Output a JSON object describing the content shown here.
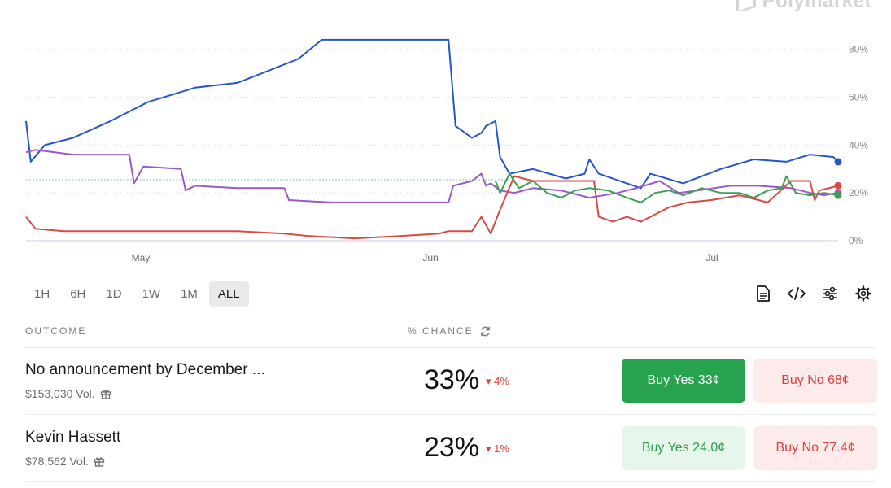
{
  "brand": {
    "name": "Polymarket"
  },
  "chart_data": {
    "type": "line",
    "yaxis": {
      "ticks": [
        "80%",
        "60%",
        "40%",
        "20%",
        "0%"
      ],
      "ylim": [
        0,
        85
      ]
    },
    "xaxis": {
      "ticks": [
        "May",
        "Jun",
        "Jul"
      ]
    },
    "grid": true,
    "series": [
      {
        "color": "#2456c8",
        "points": [
          [
            0,
            50
          ],
          [
            1,
            33
          ],
          [
            4,
            40
          ],
          [
            10,
            43
          ],
          [
            18,
            50
          ],
          [
            26,
            58
          ],
          [
            36,
            64
          ],
          [
            45,
            66
          ],
          [
            58,
            76
          ],
          [
            63,
            84
          ],
          [
            71,
            84
          ],
          [
            90,
            84
          ],
          [
            91.5,
            48
          ],
          [
            95,
            43
          ],
          [
            97,
            45
          ],
          [
            98,
            48
          ],
          [
            100,
            50
          ],
          [
            101,
            35
          ],
          [
            103,
            28
          ],
          [
            108,
            30
          ],
          [
            115,
            26
          ],
          [
            119,
            28
          ],
          [
            120,
            34
          ],
          [
            122,
            28
          ],
          [
            128,
            24
          ],
          [
            131,
            22
          ],
          [
            133,
            28
          ],
          [
            140,
            24
          ],
          [
            148,
            30
          ],
          [
            155,
            34
          ],
          [
            162,
            33
          ],
          [
            167,
            36
          ],
          [
            172,
            35
          ],
          [
            173,
            33
          ]
        ]
      },
      {
        "color": "#9b58c6",
        "points": [
          [
            0,
            37
          ],
          [
            2,
            38
          ],
          [
            10,
            36
          ],
          [
            22,
            36
          ],
          [
            23,
            24
          ],
          [
            25,
            31
          ],
          [
            33,
            30
          ],
          [
            34,
            21
          ],
          [
            36,
            23
          ],
          [
            45,
            22
          ],
          [
            55,
            22
          ],
          [
            56,
            17
          ],
          [
            65,
            16
          ],
          [
            78,
            16
          ],
          [
            90,
            16
          ],
          [
            91,
            23
          ],
          [
            95,
            25
          ],
          [
            97,
            28
          ],
          [
            98,
            23
          ],
          [
            99,
            24
          ],
          [
            101,
            21
          ],
          [
            104,
            20
          ],
          [
            108,
            22
          ],
          [
            114,
            21
          ],
          [
            120,
            18
          ],
          [
            126,
            20
          ],
          [
            130,
            22
          ],
          [
            135,
            25
          ],
          [
            139,
            20
          ],
          [
            143,
            21
          ],
          [
            150,
            23
          ],
          [
            156,
            23
          ],
          [
            163,
            22
          ],
          [
            167,
            20
          ],
          [
            170,
            19
          ],
          [
            173,
            20
          ]
        ]
      },
      {
        "color": "#d64b45",
        "points": [
          [
            0,
            10
          ],
          [
            2,
            5
          ],
          [
            8,
            4
          ],
          [
            18,
            4
          ],
          [
            30,
            4
          ],
          [
            45,
            4
          ],
          [
            55,
            3
          ],
          [
            60,
            2
          ],
          [
            70,
            1
          ],
          [
            80,
            2
          ],
          [
            88,
            3
          ],
          [
            90,
            4
          ],
          [
            95,
            4
          ],
          [
            97,
            10
          ],
          [
            99,
            3
          ],
          [
            101,
            13
          ],
          [
            104,
            27
          ],
          [
            108,
            25
          ],
          [
            116,
            25
          ],
          [
            121,
            25
          ],
          [
            122,
            10
          ],
          [
            125,
            8
          ],
          [
            128,
            10
          ],
          [
            131,
            8
          ],
          [
            134,
            11
          ],
          [
            137,
            14
          ],
          [
            141,
            16
          ],
          [
            146,
            17
          ],
          [
            152,
            19
          ],
          [
            158,
            16
          ],
          [
            163,
            25
          ],
          [
            167,
            25
          ],
          [
            168,
            17
          ],
          [
            169,
            21
          ],
          [
            173,
            23
          ]
        ]
      },
      {
        "color": "#3c9e55",
        "points": [
          [
            100,
            25
          ],
          [
            101,
            20
          ],
          [
            103,
            28
          ],
          [
            105,
            22
          ],
          [
            108,
            25
          ],
          [
            111,
            20
          ],
          [
            114,
            18
          ],
          [
            117,
            21
          ],
          [
            120,
            22
          ],
          [
            124,
            21
          ],
          [
            128,
            18
          ],
          [
            131,
            16
          ],
          [
            134,
            20
          ],
          [
            137,
            21
          ],
          [
            140,
            19
          ],
          [
            144,
            22
          ],
          [
            148,
            20
          ],
          [
            152,
            20
          ],
          [
            155,
            18
          ],
          [
            158,
            21
          ],
          [
            161,
            22
          ],
          [
            162,
            27
          ],
          [
            164,
            20
          ],
          [
            167,
            19
          ],
          [
            170,
            20
          ],
          [
            173,
            19
          ]
        ]
      }
    ],
    "reference_line_value": 25.5
  },
  "range_buttons": [
    "1H",
    "6H",
    "1D",
    "1W",
    "1M",
    "ALL"
  ],
  "active_range": "ALL",
  "table": {
    "col_outcome": "OUTCOME",
    "col_chance": "% CHANCE",
    "rows": [
      {
        "title": "No announcement by December ...",
        "volume": "$153,030 Vol.",
        "chance": "33%",
        "change": "4%",
        "buy_yes": "Buy Yes 33¢",
        "buy_no": "Buy No 68¢"
      },
      {
        "title": "Kevin Hassett",
        "volume": "$78,562 Vol.",
        "chance": "23%",
        "change": "1%",
        "buy_yes": "Buy Yes 24.0¢",
        "buy_no": "Buy No 77.4¢"
      }
    ]
  }
}
